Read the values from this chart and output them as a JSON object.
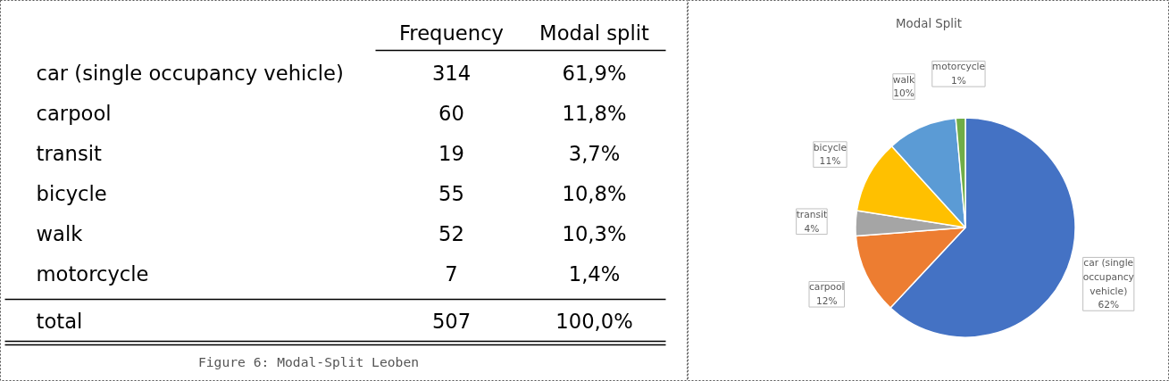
{
  "chart_data": [
    {
      "type": "other",
      "categories": [
        "car (single occupancy vehicle)",
        "carpool",
        "transit",
        "bicycle",
        "walk",
        "motorcycle",
        "total"
      ],
      "series": [
        {
          "name": "Frequency",
          "values": [
            314,
            60,
            19,
            55,
            52,
            7,
            507
          ]
        },
        {
          "name": "Modal split",
          "values": [
            61.9,
            11.8,
            3.7,
            10.8,
            10.3,
            1.4,
            100.0
          ],
          "value_labels": [
            "61,9%",
            "11,8%",
            "3,7%",
            "10,8%",
            "10,3%",
            "1,4%",
            "100,0%"
          ]
        }
      ],
      "data_labels": true,
      "annotations": [
        "Figure 6: Modal-Split Leoben"
      ]
    },
    {
      "type": "pie",
      "title": "Modal Split",
      "categories": [
        "car (single occupancy vehicle)",
        "carpool",
        "transit",
        "bicycle",
        "walk",
        "motorcycle"
      ],
      "values": [
        61.9,
        11.8,
        3.7,
        10.8,
        10.3,
        1.4
      ],
      "value_labels": [
        "62%",
        "12%",
        "4%",
        "11%",
        "10%",
        "1%"
      ],
      "colors": [
        "#4472c4",
        "#ed7d31",
        "#a5a5a5",
        "#ffc000",
        "#5b9bd5",
        "#70ad47"
      ]
    }
  ]
}
